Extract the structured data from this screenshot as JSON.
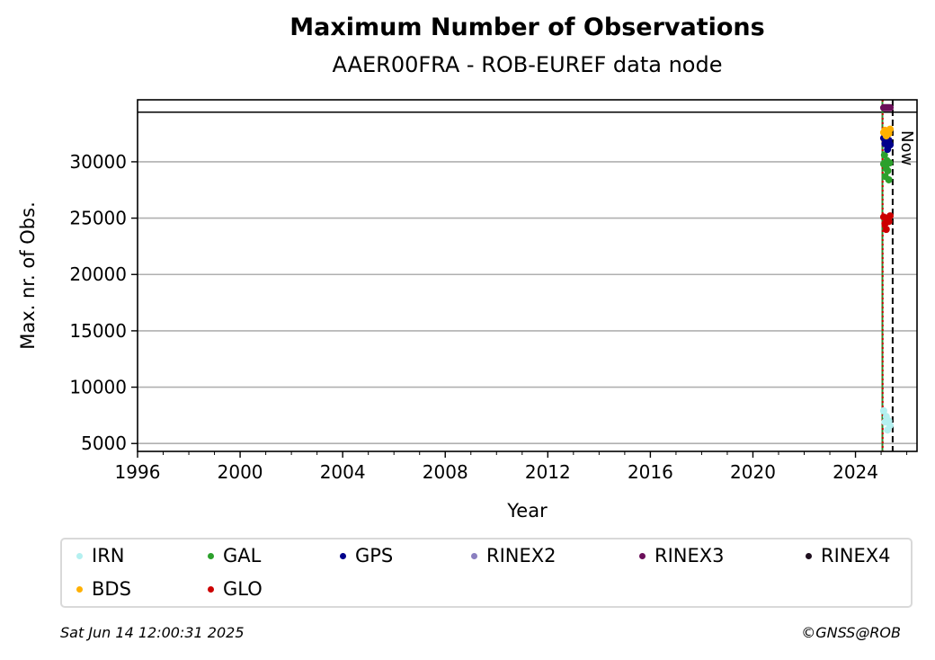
{
  "chart_data": {
    "type": "scatter",
    "title": "Maximum Number of Observations",
    "subtitle": "AAER00FRA - ROB-EUREF data node",
    "xlabel": "Year",
    "ylabel": "Max. nr. of Obs.",
    "xlim": [
      1996,
      2026.4
    ],
    "ylim": [
      4300,
      35500
    ],
    "x_ticks": [
      "1996",
      "2000",
      "2004",
      "2008",
      "2012",
      "2016",
      "2020",
      "2024"
    ],
    "y_ticks": [
      "5000",
      "10000",
      "15000",
      "20000",
      "25000",
      "30000"
    ],
    "grid": "horizontal",
    "reference_line_y": 34400,
    "vertical_lines": [
      {
        "x": 2025.05,
        "color": "#2e8b2e",
        "style": "solid"
      },
      {
        "x": 2025.06,
        "color": "#cc0000",
        "style": "dotted"
      },
      {
        "x": 2025.45,
        "color": "#000000",
        "style": "dashed",
        "label": "Now"
      }
    ],
    "series": [
      {
        "name": "IRN",
        "color": "#b4f0f0",
        "x": [
          2025.1,
          2025.15,
          2025.2,
          2025.25,
          2025.3,
          2025.35
        ],
        "y": [
          7900,
          6900,
          7400,
          6200,
          7000,
          6600
        ]
      },
      {
        "name": "GAL",
        "color": "#2ca02c",
        "x": [
          2025.1,
          2025.13,
          2025.16,
          2025.2,
          2025.23,
          2025.26,
          2025.3,
          2025.33
        ],
        "y": [
          29800,
          30600,
          28700,
          29400,
          30100,
          29200,
          28400,
          29900
        ]
      },
      {
        "name": "GPS",
        "color": "#00008b",
        "x": [
          2025.1,
          2025.15,
          2025.2,
          2025.25,
          2025.3,
          2025.35
        ],
        "y": [
          32100,
          31600,
          32300,
          31100,
          31900,
          31500
        ]
      },
      {
        "name": "RINEX2",
        "color": "#8a7fc0",
        "x": [],
        "y": []
      },
      {
        "name": "RINEX3",
        "color": "#6b0f5a",
        "x": [
          2025.1,
          2025.15,
          2025.2,
          2025.25,
          2025.3,
          2025.35
        ],
        "y": [
          34800,
          34800,
          34800,
          34800,
          34800,
          34800
        ]
      },
      {
        "name": "RINEX4",
        "color": "#1f0f1f",
        "x": [],
        "y": []
      },
      {
        "name": "BDS",
        "color": "#ffb000",
        "x": [
          2025.1,
          2025.15,
          2025.2,
          2025.25,
          2025.3,
          2025.35
        ],
        "y": [
          32600,
          32800,
          32300,
          32700,
          32500,
          32900
        ]
      },
      {
        "name": "GLO",
        "color": "#cc0000",
        "x": [
          2025.1,
          2025.15,
          2025.2,
          2025.25,
          2025.3,
          2025.35
        ],
        "y": [
          25100,
          24500,
          24000,
          25000,
          24700,
          25200
        ]
      }
    ]
  },
  "legend_items": [
    {
      "label": "IRN",
      "color": "#b4f0f0"
    },
    {
      "label": "GAL",
      "color": "#2ca02c"
    },
    {
      "label": "GPS",
      "color": "#00008b"
    },
    {
      "label": "RINEX2",
      "color": "#8a7fc0"
    },
    {
      "label": "RINEX3",
      "color": "#6b0f5a"
    },
    {
      "label": "RINEX4",
      "color": "#1f0f1f"
    },
    {
      "label": "BDS",
      "color": "#ffb000"
    },
    {
      "label": "GLO",
      "color": "#cc0000"
    }
  ],
  "footer": {
    "timestamp": "Sat Jun 14 12:00:31 2025",
    "copyright": "©GNSS@ROB"
  }
}
